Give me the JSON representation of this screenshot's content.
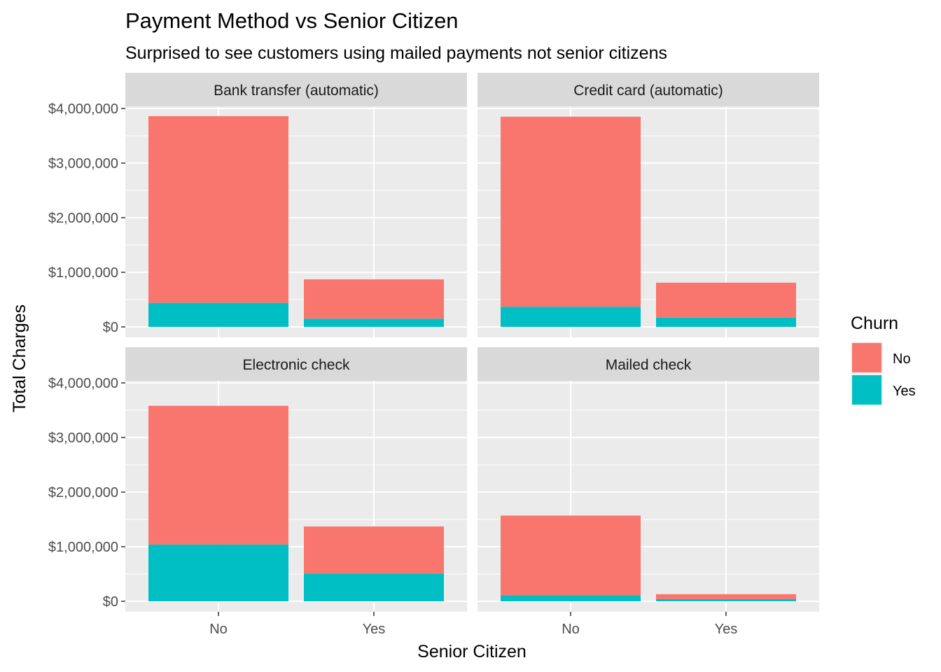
{
  "chart_data": {
    "type": "bar",
    "stacked": true,
    "title": "Payment Method vs Senior Citizen",
    "subtitle": "Surprised to see customers using mailed payments not senior citizens",
    "xlabel": "Senior Citizen",
    "ylabel": "Total Charges",
    "categories": [
      "No",
      "Yes"
    ],
    "ylim": [
      0,
      4000000
    ],
    "y_ticks": [
      0,
      1000000,
      2000000,
      3000000,
      4000000
    ],
    "y_tick_labels": [
      "$0",
      "$1,000,000",
      "$2,000,000",
      "$3,000,000",
      "$4,000,000"
    ],
    "legend": {
      "title": "Churn",
      "position": "right",
      "entries": [
        {
          "label": "No",
          "color": "#F8766D"
        },
        {
          "label": "Yes",
          "color": "#00BFC4"
        }
      ]
    },
    "grid": true,
    "facets": [
      {
        "label": "Bank transfer (automatic)",
        "series": [
          {
            "name": "No",
            "values": [
              3420000,
              720000
            ]
          },
          {
            "name": "Yes",
            "values": [
              440000,
              150000
            ]
          }
        ]
      },
      {
        "label": "Credit card (automatic)",
        "series": [
          {
            "name": "No",
            "values": [
              3480000,
              640000
            ]
          },
          {
            "name": "Yes",
            "values": [
              370000,
              170000
            ]
          }
        ]
      },
      {
        "label": "Electronic check",
        "series": [
          {
            "name": "No",
            "values": [
              2540000,
              860000
            ]
          },
          {
            "name": "Yes",
            "values": [
              1040000,
              510000
            ]
          }
        ]
      },
      {
        "label": "Mailed check",
        "series": [
          {
            "name": "No",
            "values": [
              1460000,
              90000
            ]
          },
          {
            "name": "Yes",
            "values": [
              110000,
              40000
            ]
          }
        ]
      }
    ]
  }
}
